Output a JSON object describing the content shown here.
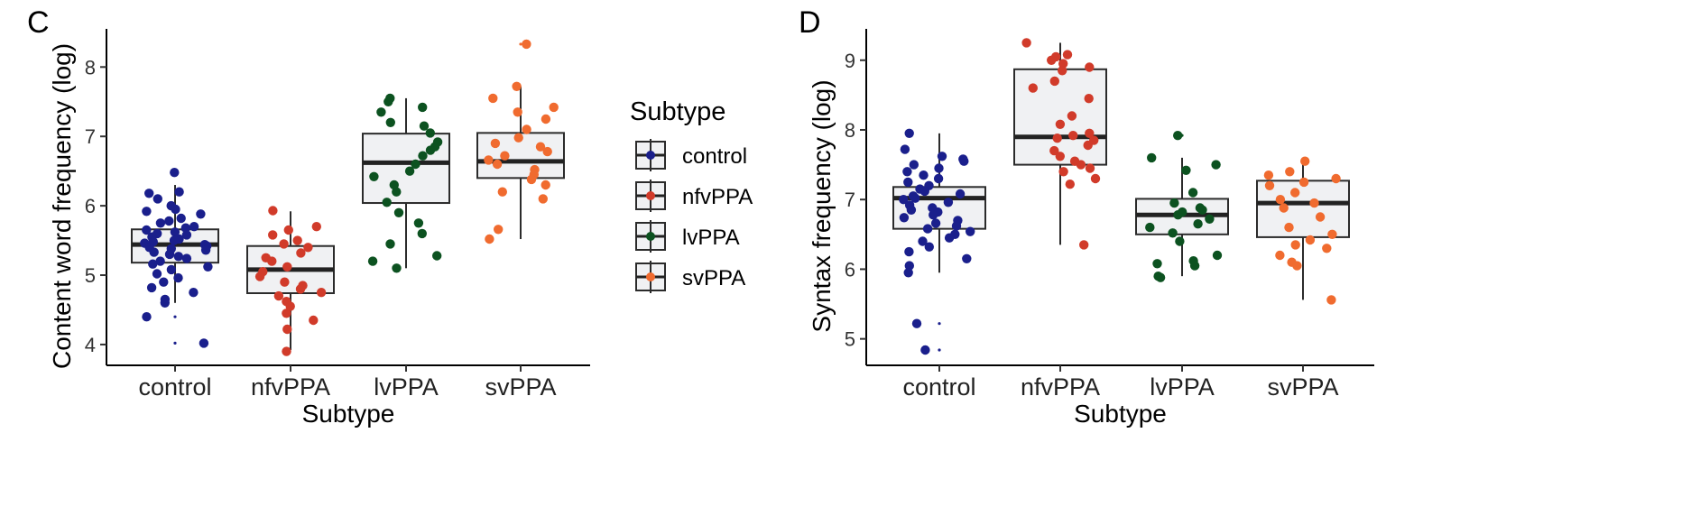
{
  "colors": {
    "control": "#1a1f8c",
    "nfvPPA": "#d13b2a",
    "lvPPA": "#0c5220",
    "svPPA": "#f06b2f",
    "box_fill": "#f0f1f3",
    "box_stroke": "#2b2b2b"
  },
  "legend": {
    "title": "Subtype",
    "items": [
      {
        "key": "control",
        "label": "control"
      },
      {
        "key": "nfvPPA",
        "label": "nfvPPA"
      },
      {
        "key": "lvPPA",
        "label": "lvPPA"
      },
      {
        "key": "svPPA",
        "label": "svPPA"
      }
    ]
  },
  "chart_data": [
    {
      "panel": "C",
      "type": "box",
      "xlabel": "Subtype",
      "ylabel": "Content word frequency (log)",
      "categories": [
        "control",
        "nfvPPA",
        "lvPPA",
        "svPPA"
      ],
      "yticks": [
        4,
        5,
        6,
        7,
        8
      ],
      "ylim": [
        3.7,
        8.55
      ],
      "boxes": [
        {
          "name": "control",
          "q1": 5.18,
          "median": 5.44,
          "q3": 5.66,
          "whisker_low": 4.6,
          "whisker_high": 6.3,
          "outliers": [
            4.4,
            4.02,
            6.5
          ],
          "points": [
            6.48,
            6.2,
            6.18,
            6.1,
            6.0,
            5.95,
            5.92,
            5.88,
            5.82,
            5.78,
            5.75,
            5.7,
            5.68,
            5.65,
            5.62,
            5.6,
            5.58,
            5.55,
            5.52,
            5.5,
            5.48,
            5.46,
            5.44,
            5.42,
            5.4,
            5.38,
            5.36,
            5.33,
            5.3,
            5.27,
            5.24,
            5.2,
            5.16,
            5.12,
            5.08,
            5.02,
            4.96,
            4.9,
            4.82,
            4.75,
            4.65,
            4.6,
            4.4,
            4.02
          ]
        },
        {
          "name": "nfvPPA",
          "q1": 4.74,
          "median": 5.08,
          "q3": 5.42,
          "whisker_low": 3.92,
          "whisker_high": 5.92,
          "points": [
            5.93,
            5.7,
            5.65,
            5.58,
            5.5,
            5.45,
            5.4,
            5.32,
            5.25,
            5.2,
            5.12,
            5.05,
            4.98,
            4.9,
            4.85,
            4.8,
            4.75,
            4.7,
            4.62,
            4.55,
            4.45,
            4.35,
            4.22,
            3.9
          ]
        },
        {
          "name": "lvPPA",
          "q1": 6.04,
          "median": 6.62,
          "q3": 7.04,
          "whisker_low": 5.1,
          "whisker_high": 7.55,
          "points": [
            7.55,
            7.5,
            7.42,
            7.35,
            7.2,
            7.15,
            7.05,
            6.92,
            6.85,
            6.8,
            6.72,
            6.6,
            6.5,
            6.42,
            6.3,
            6.2,
            6.05,
            5.9,
            5.75,
            5.6,
            5.45,
            5.28,
            5.2,
            5.1
          ]
        },
        {
          "name": "svPPA",
          "q1": 6.4,
          "median": 6.64,
          "q3": 7.05,
          "whisker_low": 5.52,
          "whisker_high": 7.72,
          "outliers": [
            8.33
          ],
          "points": [
            8.33,
            7.72,
            7.55,
            7.42,
            7.35,
            7.25,
            7.1,
            6.98,
            6.9,
            6.85,
            6.78,
            6.72,
            6.66,
            6.6,
            6.52,
            6.45,
            6.38,
            6.3,
            6.2,
            6.1,
            5.66,
            5.52
          ]
        }
      ]
    },
    {
      "panel": "D",
      "type": "box",
      "xlabel": "Subtype",
      "ylabel": "Syntax frequency (log)",
      "categories": [
        "control",
        "nfvPPA",
        "lvPPA",
        "svPPA"
      ],
      "yticks": [
        5,
        6,
        7,
        8,
        9
      ],
      "ylim": [
        4.62,
        9.45
      ],
      "boxes": [
        {
          "name": "control",
          "q1": 6.58,
          "median": 7.02,
          "q3": 7.18,
          "whisker_low": 5.95,
          "whisker_high": 7.95,
          "outliers": [
            5.22,
            4.84
          ],
          "points": [
            7.95,
            7.72,
            7.62,
            7.58,
            7.55,
            7.5,
            7.45,
            7.4,
            7.35,
            7.3,
            7.25,
            7.2,
            7.15,
            7.12,
            7.08,
            7.05,
            7.02,
            7.0,
            6.96,
            6.92,
            6.88,
            6.85,
            6.82,
            6.78,
            6.74,
            6.7,
            6.66,
            6.62,
            6.58,
            6.54,
            6.5,
            6.45,
            6.4,
            6.32,
            6.25,
            6.15,
            6.05,
            5.95,
            5.22,
            4.84
          ]
        },
        {
          "name": "nfvPPA",
          "q1": 7.5,
          "median": 7.9,
          "q3": 8.87,
          "whisker_low": 6.35,
          "whisker_high": 9.25,
          "points": [
            9.25,
            9.08,
            9.05,
            9.0,
            8.95,
            8.9,
            8.85,
            8.7,
            8.6,
            8.45,
            8.2,
            8.08,
            7.95,
            7.92,
            7.88,
            7.85,
            7.78,
            7.7,
            7.62,
            7.55,
            7.5,
            7.45,
            7.4,
            7.3,
            7.22,
            6.35
          ]
        },
        {
          "name": "lvPPA",
          "q1": 6.5,
          "median": 6.78,
          "q3": 7.01,
          "whisker_low": 5.9,
          "whisker_high": 7.6,
          "outliers": [
            7.92
          ],
          "points": [
            7.92,
            7.6,
            7.5,
            7.42,
            7.1,
            6.95,
            6.88,
            6.85,
            6.82,
            6.78,
            6.72,
            6.65,
            6.6,
            6.52,
            6.4,
            6.2,
            6.12,
            6.08,
            6.05,
            5.9,
            5.88
          ]
        },
        {
          "name": "svPPA",
          "q1": 6.46,
          "median": 6.95,
          "q3": 7.27,
          "whisker_low": 5.56,
          "whisker_high": 7.5,
          "points": [
            7.55,
            7.4,
            7.35,
            7.3,
            7.25,
            7.2,
            7.1,
            7.0,
            6.95,
            6.88,
            6.75,
            6.6,
            6.5,
            6.42,
            6.35,
            6.3,
            6.2,
            6.1,
            6.05,
            5.56
          ]
        }
      ]
    }
  ]
}
